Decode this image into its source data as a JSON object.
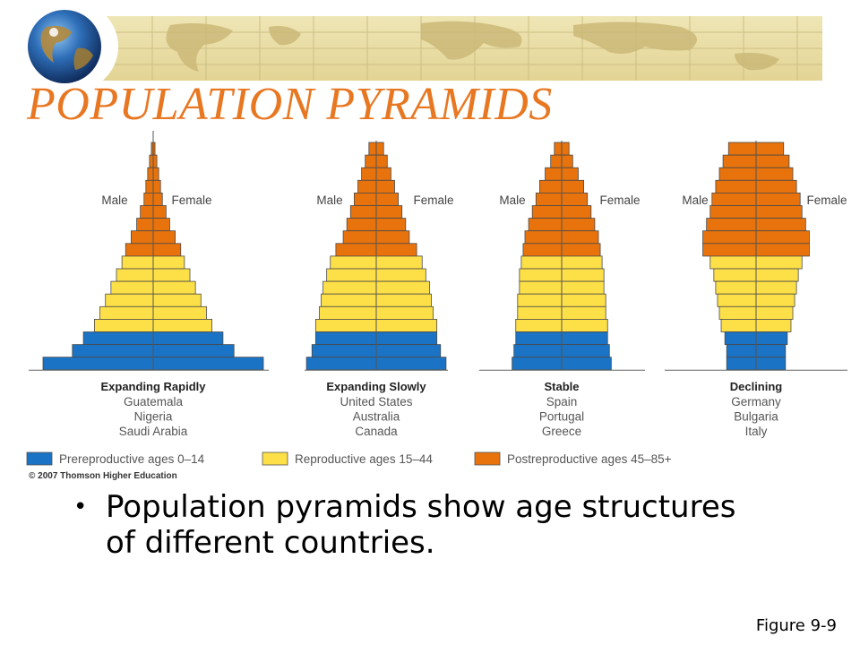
{
  "slide": {
    "title": "POPULATION PYRAMIDS",
    "bullet": "Population pyramids show age structures of different countries.",
    "figure_ref": "Figure 9-9",
    "title_color": "#e87722"
  },
  "chart_data": {
    "type": "bar",
    "subtype": "population-pyramid",
    "male_label": "Male",
    "female_label": "Female",
    "copyright": "© 2007 Thomson Higher Education",
    "legend": [
      {
        "label": "Prereproductive ages 0–14",
        "color": "#1a73c4"
      },
      {
        "label": "Reproductive ages 15–44",
        "color": "#fde047"
      },
      {
        "label": "Postreproductive ages 45–85+",
        "color": "#e8730c"
      }
    ],
    "age_groups_top_to_bottom": 18,
    "group_sizes": {
      "postreproductive": 9,
      "reproductive": 6,
      "prereproductive": 3
    },
    "pyramids": [
      {
        "title": "Expanding Rapidly",
        "countries": [
          "Guatemala",
          "Nigeria",
          "Saudi Arabia"
        ],
        "half_widths": [
          0.5,
          1,
          1.5,
          2,
          2.5,
          3.5,
          4.5,
          6,
          7.5,
          8.5,
          10,
          11.5,
          13,
          14.5,
          16,
          19,
          22,
          30
        ]
      },
      {
        "title": "Expanding Slowly",
        "countries": [
          "United States",
          "Australia",
          "Canada"
        ],
        "half_widths": [
          2,
          3,
          4,
          5,
          6,
          7,
          8,
          9,
          11,
          12.5,
          13.5,
          14.5,
          15,
          15.5,
          16.5,
          16.5,
          17.5,
          19
        ]
      },
      {
        "title": "Stable",
        "countries": [
          "Spain",
          "Portugal",
          "Greece"
        ],
        "half_widths": [
          2,
          3,
          4.5,
          6,
          7,
          8,
          9,
          10,
          10.5,
          11,
          11.5,
          11.5,
          12,
          12,
          12.5,
          12.5,
          13,
          13.5
        ]
      },
      {
        "title": "Declining",
        "countries": [
          "Germany",
          "Bulgaria",
          "Italy"
        ],
        "half_widths": [
          7.5,
          9,
          10,
          11,
          12,
          12.5,
          13.5,
          14.5,
          14.5,
          12.5,
          11.5,
          11,
          10.5,
          10,
          9.5,
          8.5,
          8,
          8
        ]
      }
    ]
  }
}
